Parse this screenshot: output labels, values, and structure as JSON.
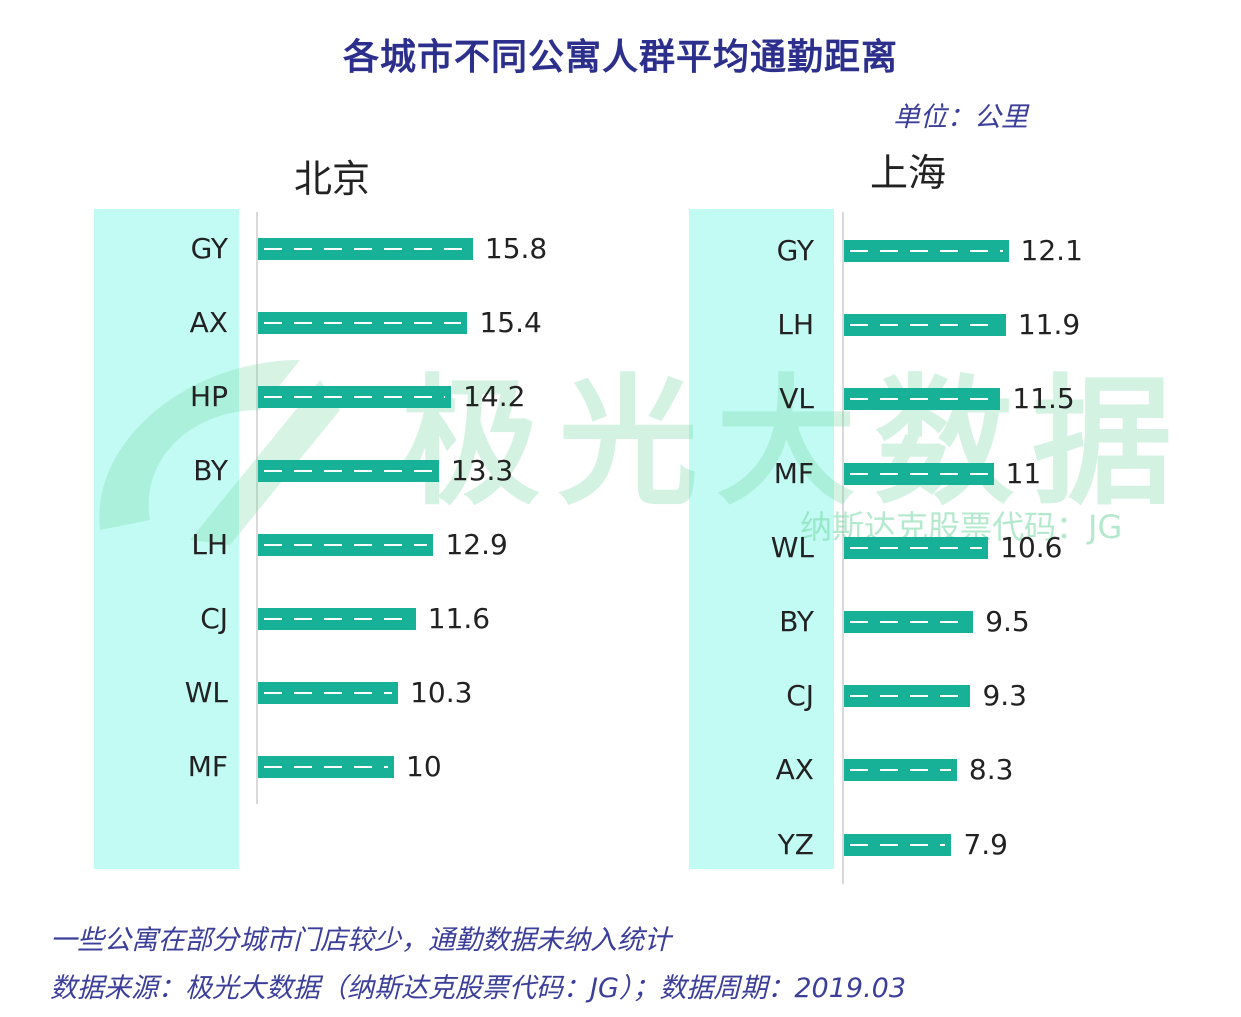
{
  "title": "各城市不同公寓人群平均通勤距离",
  "unit": "单位：公里",
  "watermark": {
    "name": "极光大数据",
    "sub": "纳斯达克股票代码：JG"
  },
  "notes": [
    "一些公寓在部分城市门店较少，通勤数据未纳入统计",
    "数据来源：极光大数据（纳斯达克股票代码：JG）；数据周期：2019.03"
  ],
  "colors": {
    "bar": "#17b197",
    "strip": "#c2fbf3",
    "title": "#2c2f8c"
  },
  "chart_data": [
    {
      "type": "bar",
      "orientation": "horizontal",
      "title": "北京",
      "categories": [
        "GY",
        "AX",
        "HP",
        "BY",
        "LH",
        "CJ",
        "WL",
        "MF"
      ],
      "values": [
        15.8,
        15.4,
        14.2,
        13.3,
        12.9,
        11.6,
        10.3,
        10
      ],
      "labels": [
        "15.8",
        "15.4",
        "14.2",
        "13.3",
        "12.9",
        "11.6",
        "10.3",
        "10"
      ]
    },
    {
      "type": "bar",
      "orientation": "horizontal",
      "title": "上海",
      "categories": [
        "GY",
        "LH",
        "VL",
        "MF",
        "WL",
        "BY",
        "CJ",
        "AX",
        "YZ"
      ],
      "values": [
        12.1,
        11.9,
        11.5,
        11,
        10.6,
        9.5,
        9.3,
        8.3,
        7.9
      ],
      "labels": [
        "12.1",
        "11.9",
        "11.5",
        "11",
        "10.6",
        "9.5",
        "9.3",
        "8.3",
        "7.9"
      ]
    }
  ]
}
